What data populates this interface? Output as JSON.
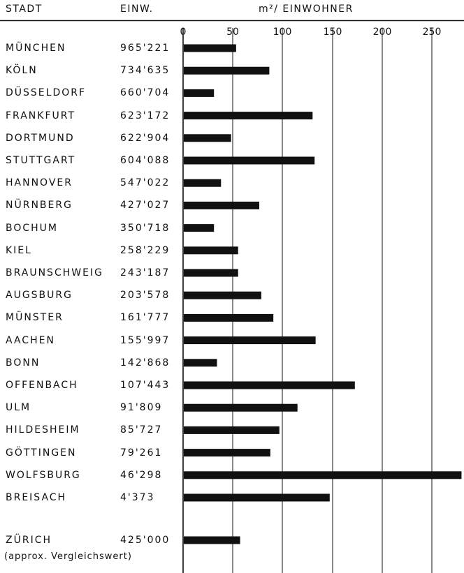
{
  "header": {
    "city_col": "STADT",
    "pop_col": "EINW.",
    "area_col": "m²/ EINWOHNER"
  },
  "note": "(approx. Vergleichswert)",
  "colors": {
    "bar": "#111111",
    "line": "#111111",
    "background": "#ffffff"
  },
  "chart_data": {
    "type": "bar",
    "orientation": "horizontal",
    "title": "",
    "xlabel": "m²/ EINWOHNER",
    "ylabel": "",
    "xlim": [
      0,
      276
    ],
    "x_ticks": [
      0,
      50,
      100,
      150,
      200,
      250
    ],
    "grid": "vertical lines at ticks",
    "legend": "none",
    "categories": [
      "MÜNCHEN",
      "KÖLN",
      "DÜSSELDORF",
      "FRANKFURT",
      "DORTMUND",
      "STUTTGART",
      "HANNOVER",
      "NÜRNBERG",
      "BOCHUM",
      "KIEL",
      "BRAUNSCHWEIG",
      "AUGSBURG",
      "MÜNSTER",
      "AACHEN",
      "BONN",
      "OFFENBACH",
      "ULM",
      "HILDESHEIM",
      "GÖTTINGEN",
      "WOLFSBURG",
      "BREISACH",
      "ZÜRICH"
    ],
    "population": [
      "965'221",
      "734'635",
      "660'704",
      "623'172",
      "622'904",
      "604'088",
      "547'022",
      "427'027",
      "350'718",
      "258'229",
      "243'187",
      "203'578",
      "161'777",
      "155'997",
      "142'868",
      "107'443",
      "91'809",
      "85'727",
      "79'261",
      "46'298",
      "4'373",
      "425'000"
    ],
    "values": [
      52,
      85,
      30,
      128,
      47,
      130,
      37,
      75,
      30,
      54,
      54,
      77,
      89,
      131,
      33,
      170,
      113,
      95,
      86,
      276,
      145,
      56
    ]
  }
}
